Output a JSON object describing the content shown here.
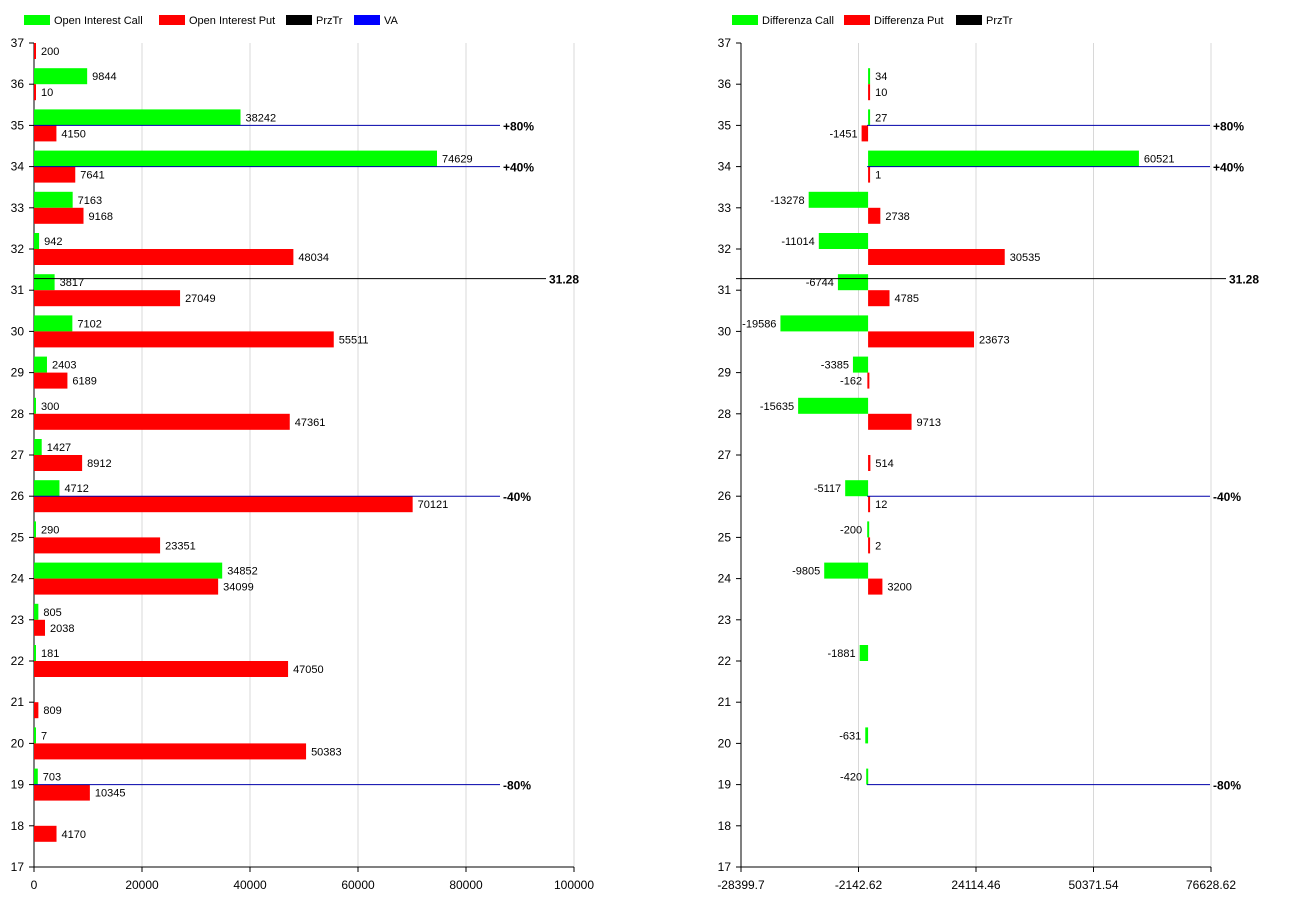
{
  "chart_data": [
    {
      "type": "bar",
      "orientation": "horizontal",
      "legend": [
        {
          "name": "Open Interest Call",
          "color": "#00ff00"
        },
        {
          "name": "Open Interest Put",
          "color": "#ff0000"
        },
        {
          "name": "PrzTr",
          "color": "#000000"
        },
        {
          "name": "VA",
          "color": "#0000ff"
        }
      ],
      "legend_position": "top-left",
      "categories": [
        37,
        36,
        35,
        34,
        33,
        32,
        31,
        30,
        29,
        28,
        27,
        26,
        25,
        24,
        23,
        22,
        21,
        20,
        19,
        18,
        17
      ],
      "series": [
        {
          "name": "Open Interest Call",
          "color": "#00ff00",
          "values": [
            null,
            9844,
            38242,
            74629,
            7163,
            942,
            3817,
            7102,
            2403,
            300,
            1427,
            4712,
            290,
            34852,
            805,
            181,
            null,
            7,
            703,
            null,
            null
          ]
        },
        {
          "name": "Open Interest Put",
          "color": "#ff0000",
          "values": [
            200,
            10,
            4150,
            7641,
            9168,
            48034,
            27049,
            55511,
            6189,
            47361,
            8912,
            70121,
            23351,
            34099,
            2038,
            47050,
            809,
            50383,
            10345,
            4170,
            null
          ]
        }
      ],
      "lines": [
        {
          "series": "PrzTr",
          "y": 31.28,
          "label": "31.28",
          "color": "#000000"
        },
        {
          "series": "VA",
          "y": 35,
          "label": "+80%",
          "color": "#0000aa"
        },
        {
          "series": "VA",
          "y": 34,
          "label": "+40%",
          "color": "#0000aa"
        },
        {
          "series": "VA",
          "y": 26,
          "label": "-40%",
          "color": "#0000aa"
        },
        {
          "series": "VA",
          "y": 19,
          "label": "-80%",
          "color": "#0000aa"
        }
      ],
      "xlim": [
        0,
        100000
      ],
      "xticks": [
        0,
        20000,
        40000,
        60000,
        80000,
        100000
      ],
      "ylim": [
        17,
        37
      ],
      "grid": "vertical"
    },
    {
      "type": "bar",
      "orientation": "horizontal",
      "legend": [
        {
          "name": "Differenza Call",
          "color": "#00ff00"
        },
        {
          "name": "Differenza Put",
          "color": "#ff0000"
        },
        {
          "name": "PrzTr",
          "color": "#000000"
        }
      ],
      "legend_position": "top-left",
      "categories": [
        37,
        36,
        35,
        34,
        33,
        32,
        31,
        30,
        29,
        28,
        27,
        26,
        25,
        24,
        23,
        22,
        21,
        20,
        19,
        18,
        17
      ],
      "series": [
        {
          "name": "Differenza Call",
          "color": "#00ff00",
          "values": [
            null,
            34,
            27,
            60521,
            -13278,
            -11014,
            -6744,
            -19586,
            -3385,
            -15635,
            null,
            -5117,
            -200,
            -9805,
            null,
            -1881,
            null,
            -631,
            -420,
            null,
            null
          ]
        },
        {
          "name": "Differenza Put",
          "color": "#ff0000",
          "values": [
            null,
            10,
            -1451,
            1,
            2738,
            30535,
            4785,
            23673,
            -162,
            9713,
            514,
            12,
            2,
            3200,
            null,
            null,
            null,
            null,
            null,
            null,
            null
          ]
        }
      ],
      "lines": [
        {
          "series": "PrzTr",
          "y": 31.28,
          "label": "31.28",
          "color": "#000000"
        },
        {
          "series": "VA",
          "y": 35,
          "label": "+80%",
          "color": "#0000aa"
        },
        {
          "series": "VA",
          "y": 34,
          "label": "+40%",
          "color": "#0000aa"
        },
        {
          "series": "VA",
          "y": 26,
          "label": "-40%",
          "color": "#0000aa"
        },
        {
          "series": "VA",
          "y": 19,
          "label": "-80%",
          "color": "#0000aa"
        }
      ],
      "xlim": [
        -28399.7,
        76628.62
      ],
      "xticks": [
        -28399.7,
        -2142.62,
        24114.46,
        50371.54,
        76628.62
      ],
      "xtick_labels": [
        "-28399.7",
        "-2142.62",
        "24114.46",
        "50371.54",
        "76628.62"
      ],
      "ylim": [
        17,
        37
      ],
      "grid": "vertical"
    }
  ]
}
